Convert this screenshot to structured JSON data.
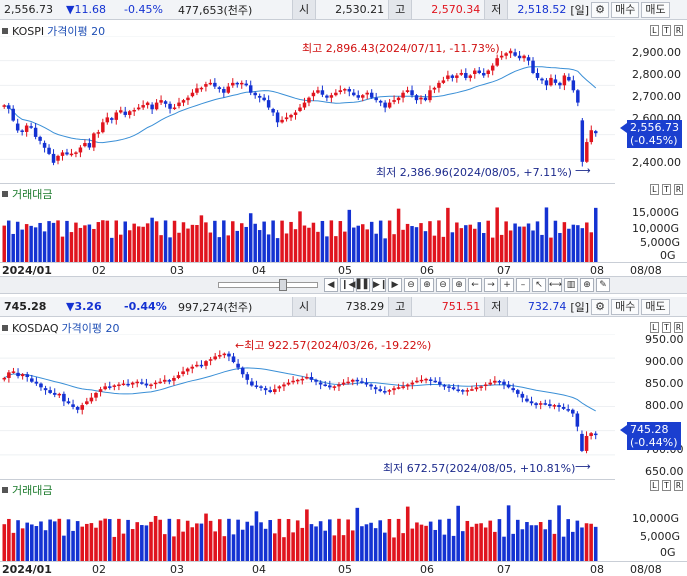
{
  "kospi": {
    "quote": {
      "price": "2,556.73",
      "change": "▼11.68",
      "pct": "-0.45%",
      "volume": "477,653(천주)",
      "open_label": "시",
      "open": "2,530.21",
      "high_label": "고",
      "high": "2,570.34",
      "low_label": "저",
      "low": "2,518.52",
      "period": "[일]"
    },
    "title": "KOSPI",
    "ma_label": "가격이평 20",
    "high_annot": "최고 2,896.43(2024/07/11, -11.73%)",
    "low_annot": "최저 2,386.96(2024/08/05, +7.11%)",
    "price_tag": "2,556.73",
    "price_pct": "(-0.45%)",
    "y_labels": [
      "2,900.00",
      "2,800.00",
      "2,700.00",
      "2,600.00",
      "2,400.00"
    ],
    "vol_title": "거래대금",
    "vol_labels": [
      "15,000G",
      "10,000G",
      "5,000G",
      "0G"
    ]
  },
  "kosdaq": {
    "quote": {
      "price": "745.28",
      "change": "▼3.26",
      "pct": "-0.44%",
      "volume": "997,274(천주)",
      "open_label": "시",
      "open": "738.29",
      "high_label": "고",
      "high": "751.51",
      "low_label": "저",
      "low": "732.74",
      "period": "[일]"
    },
    "title": "KOSDAQ",
    "ma_label": "가격이평 20",
    "high_annot": "←최고 922.57(2024/03/26, -19.22%)",
    "low_annot": "최저 672.57(2024/08/05, +10.81%)",
    "price_tag": "745.28",
    "price_pct": "(-0.44%)",
    "y_labels": [
      "950.00",
      "900.00",
      "850.00",
      "800.00",
      "700.00",
      "650.00"
    ],
    "vol_title": "거래대금",
    "vol_labels": [
      "10,000G",
      "5,000G",
      "0G"
    ]
  },
  "buttons": {
    "buy": "매수",
    "sell": "매도",
    "gear": "⚙"
  },
  "x_labels": {
    "y2024_01": "2024/01",
    "m02": "02",
    "m03": "03",
    "m04": "04",
    "m05": "05",
    "m06": "06",
    "m07": "07",
    "m08": "08",
    "end": "08/08"
  },
  "ltr": {
    "l": "L",
    "t": "T",
    "r": "R"
  },
  "toolbar": [
    "◀",
    "❙◀",
    "▌▌",
    "▶❙",
    "▶",
    "⊖",
    "⊕",
    "⊖",
    "⊕",
    "←",
    "→",
    "+",
    "–",
    "↖",
    "⟷",
    "▥",
    "⊕",
    "✎"
  ],
  "colors": {
    "up": "#e0141e",
    "down": "#1432d2",
    "ma": "#3a8fd6"
  },
  "chart_data": [
    {
      "type": "candlestick",
      "title": "KOSPI",
      "y_range": [
        2350,
        2950
      ],
      "ma_series_name": "가격이평 20",
      "closes": [
        2669,
        2655,
        2607,
        2567,
        2561,
        2587,
        2578,
        2541,
        2525,
        2497,
        2472,
        2436,
        2464,
        2478,
        2470,
        2473,
        2478,
        2498,
        2516,
        2498,
        2555,
        2560,
        2600,
        2620,
        2610,
        2640,
        2649,
        2630,
        2645,
        2650,
        2660,
        2670,
        2680,
        2653,
        2680,
        2690,
        2675,
        2655,
        2660,
        2680,
        2690,
        2700,
        2720,
        2738,
        2740,
        2755,
        2760,
        2745,
        2735,
        2720,
        2745,
        2760,
        2755,
        2760,
        2750,
        2720,
        2710,
        2700,
        2690,
        2660,
        2640,
        2600,
        2610,
        2620,
        2630,
        2640,
        2660,
        2680,
        2700,
        2720,
        2730,
        2712,
        2700,
        2710,
        2720,
        2730,
        2735,
        2725,
        2710,
        2700,
        2710,
        2720,
        2700,
        2690,
        2680,
        2660,
        2680,
        2690,
        2700,
        2720,
        2730,
        2710,
        2690,
        2700,
        2690,
        2730,
        2740,
        2760,
        2770,
        2790,
        2780,
        2790,
        2800,
        2780,
        2790,
        2810,
        2800,
        2790,
        2810,
        2830,
        2860,
        2870,
        2880,
        2890,
        2870,
        2860,
        2870,
        2850,
        2800,
        2780,
        2770,
        2750,
        2780,
        2760,
        2750,
        2790,
        2770,
        2730,
        2680,
        2440,
        2520,
        2568,
        2556
      ],
      "high_annot": "최고 2,896.43(2024/07/11, -11.73%)",
      "low_annot": "최저 2,386.96(2024/08/05, +7.11%)"
    },
    {
      "type": "candlestick",
      "title": "KOSDAQ",
      "y_range": [
        650,
        960
      ],
      "ma_series_name": "가격이평 20",
      "closes": [
        866,
        878,
        880,
        870,
        874,
        868,
        858,
        854,
        846,
        840,
        834,
        830,
        832,
        816,
        812,
        804,
        798,
        808,
        816,
        824,
        834,
        842,
        848,
        846,
        850,
        852,
        854,
        852,
        856,
        858,
        854,
        850,
        852,
        856,
        858,
        862,
        860,
        866,
        872,
        880,
        886,
        890,
        894,
        892,
        902,
        906,
        912,
        915,
        918,
        912,
        900,
        888,
        874,
        862,
        850,
        848,
        846,
        840,
        836,
        842,
        848,
        852,
        856,
        860,
        862,
        864,
        868,
        862,
        858,
        852,
        850,
        846,
        848,
        852,
        856,
        858,
        862,
        860,
        856,
        852,
        848,
        842,
        838,
        836,
        840,
        844,
        846,
        848,
        852,
        856,
        860,
        862,
        864,
        860,
        858,
        852,
        848,
        846,
        842,
        840,
        838,
        840,
        842,
        846,
        848,
        852,
        856,
        860,
        858,
        852,
        846,
        840,
        832,
        824,
        816,
        812,
        808,
        812,
        810,
        806,
        808,
        804,
        800,
        798,
        790,
        762,
        710,
        742,
        748,
        745
      ],
      "high_annot": "←최고 922.57(2024/03/26, -19.22%)",
      "low_annot": "최저 672.57(2024/08/05, +10.81%)"
    }
  ]
}
